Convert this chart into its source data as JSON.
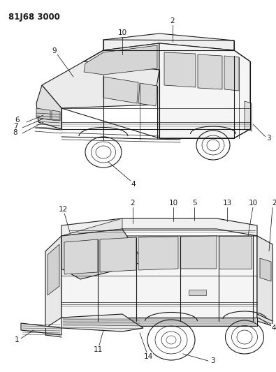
{
  "title_code": "81J68 3000",
  "bg_color": "#ffffff",
  "line_color": "#1a1a1a",
  "figsize": [
    3.95,
    5.33
  ],
  "dpi": 100
}
